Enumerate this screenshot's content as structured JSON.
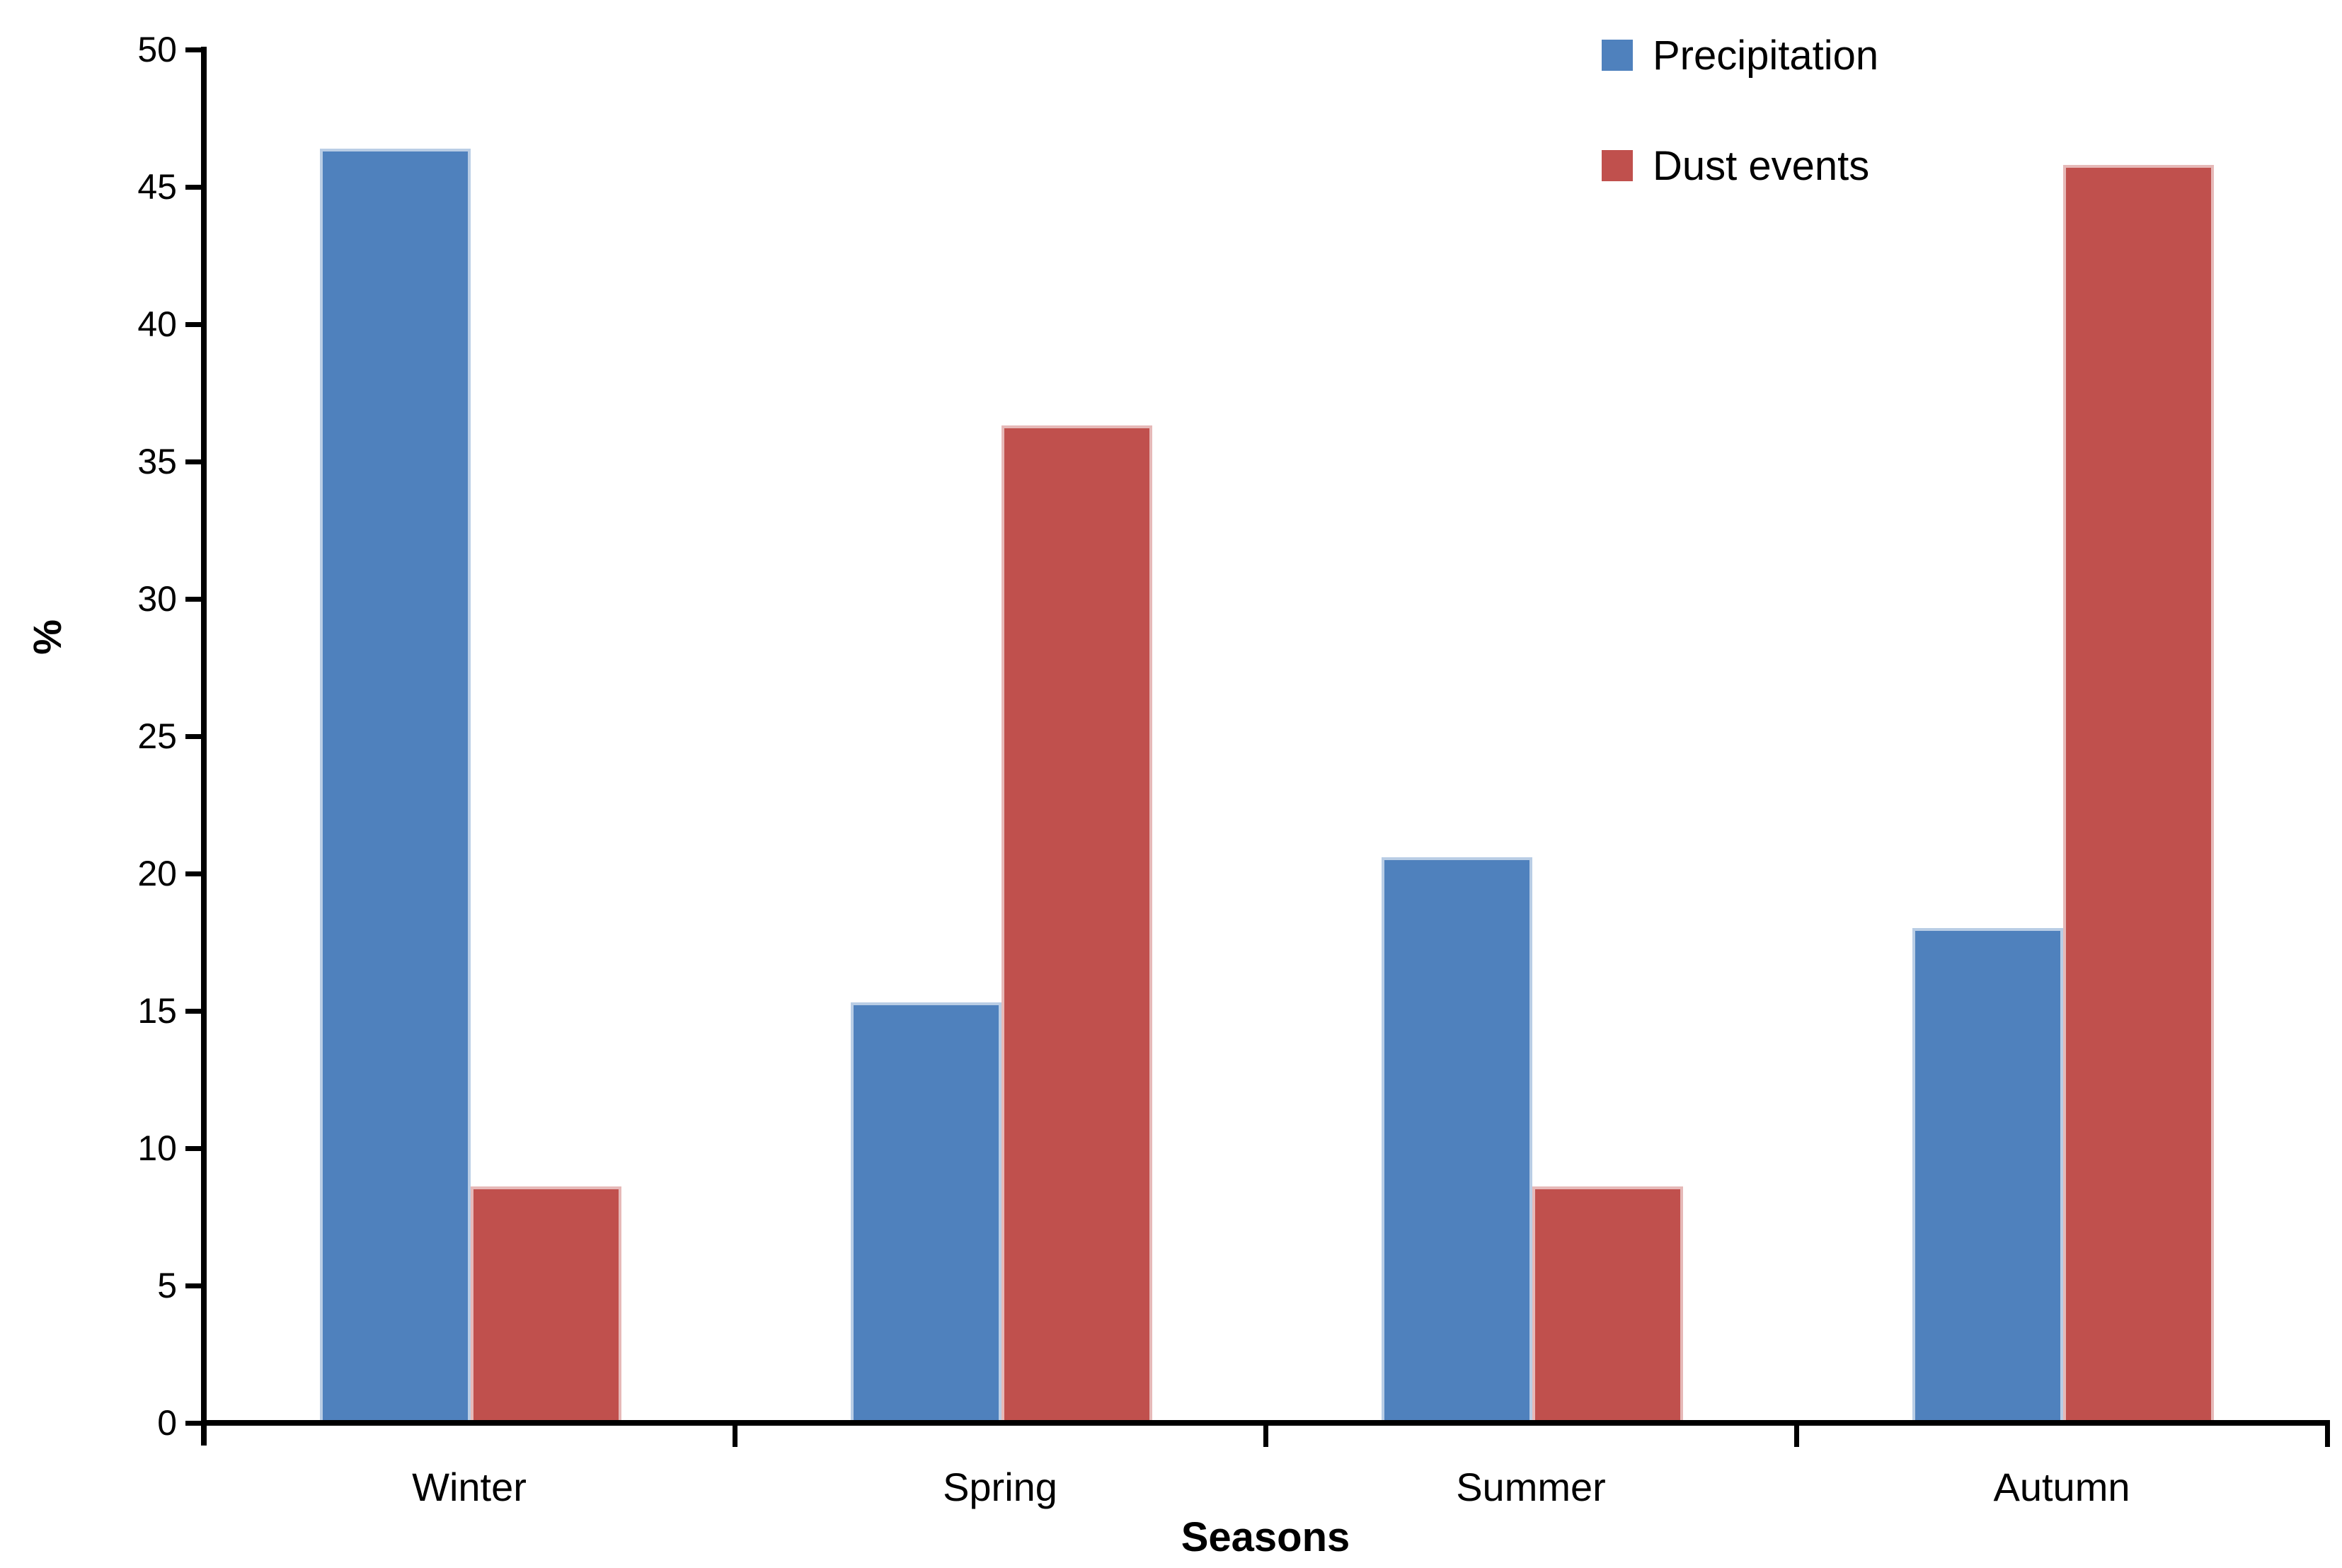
{
  "chart_data": {
    "type": "bar",
    "title": "",
    "categories": [
      "Winter",
      "Spring",
      "Summer",
      "Autumn"
    ],
    "series": [
      {
        "name": "Precipitation",
        "color": "#4F81BD",
        "edge_color": "#B9CDE5",
        "values": [
          46.3,
          15.2,
          20.5,
          17.9
        ]
      },
      {
        "name": "Dust events",
        "color": "#C0504D",
        "edge_color": "#E6B9B8",
        "values": [
          8.5,
          36.2,
          8.5,
          45.7
        ]
      }
    ],
    "xlabel": "Seasons",
    "ylabel": "%",
    "ylim": [
      0,
      50
    ],
    "ytick_step": 5,
    "yticks": [
      0,
      5,
      10,
      15,
      20,
      25,
      30,
      35,
      40,
      45,
      50
    ],
    "grid": false,
    "legend_position": "top-right",
    "axis_color": "#000000",
    "background_color": "#FFFFFF"
  }
}
